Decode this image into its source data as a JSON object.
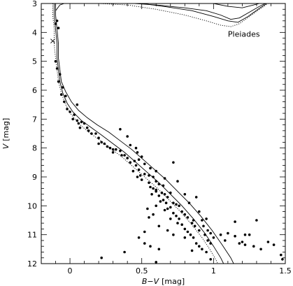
{
  "chart_data": {
    "type": "scatter",
    "title": "",
    "xlabel": "B−V",
    "xlabel_unit": "[mag]",
    "ylabel": "V",
    "ylabel_unit": "[mag]",
    "xlim": [
      -0.2,
      1.5
    ],
    "ylim": [
      12,
      3
    ],
    "y_inverted": true,
    "grid": false,
    "legend": "none",
    "x_ticks": [
      0,
      0.5,
      1,
      1.5
    ],
    "x_tick_labels": [
      "0",
      "0.5",
      "1",
      "1.5"
    ],
    "y_ticks": [
      3,
      4,
      5,
      6,
      7,
      8,
      9,
      10,
      11,
      12
    ],
    "y_tick_labels": [
      "3",
      "4",
      "5",
      "6",
      "7",
      "8",
      "9",
      "10",
      "11",
      "12"
    ],
    "annotations": [
      {
        "text": "Pleiades",
        "x": 1.1,
        "y": 4.15
      }
    ],
    "markers": [
      {
        "symbol": "cross",
        "x": -0.12,
        "y": 4.3
      }
    ],
    "series": [
      {
        "style": "dots",
        "points": [
          [
            -0.09,
            3.6
          ],
          [
            -0.08,
            3.85
          ],
          [
            -0.1,
            3.7
          ],
          [
            -0.1,
            5.0
          ],
          [
            -0.09,
            5.25
          ],
          [
            -0.07,
            5.45
          ],
          [
            -0.08,
            5.7
          ],
          [
            -0.05,
            5.9
          ],
          [
            -0.06,
            6.15
          ],
          [
            -0.03,
            6.2
          ],
          [
            -0.04,
            6.4
          ],
          [
            0.05,
            6.5
          ],
          [
            -0.02,
            6.65
          ],
          [
            0.0,
            6.75
          ],
          [
            0.03,
            6.85
          ],
          [
            0.02,
            7.0
          ],
          [
            0.05,
            7.05
          ],
          [
            0.06,
            7.15
          ],
          [
            0.08,
            7.1
          ],
          [
            0.1,
            7.15
          ],
          [
            0.07,
            7.3
          ],
          [
            0.12,
            7.3
          ],
          [
            0.13,
            7.4
          ],
          [
            0.15,
            7.5
          ],
          [
            0.18,
            7.5
          ],
          [
            0.2,
            7.65
          ],
          [
            0.22,
            7.8
          ],
          [
            0.24,
            7.85
          ],
          [
            0.2,
            7.85
          ],
          [
            0.26,
            7.95
          ],
          [
            0.28,
            8.0
          ],
          [
            0.3,
            8.05
          ],
          [
            0.32,
            8.05
          ],
          [
            0.3,
            8.15
          ],
          [
            0.35,
            8.1
          ],
          [
            0.36,
            8.25
          ],
          [
            0.38,
            8.25
          ],
          [
            0.4,
            8.35
          ],
          [
            0.42,
            8.5
          ],
          [
            0.45,
            8.45
          ],
          [
            0.46,
            8.6
          ],
          [
            0.44,
            8.8
          ],
          [
            0.48,
            8.75
          ],
          [
            0.49,
            8.95
          ],
          [
            0.52,
            8.9
          ],
          [
            0.5,
            9.1
          ],
          [
            0.55,
            9.2
          ],
          [
            0.56,
            9.35
          ],
          [
            0.58,
            9.4
          ],
          [
            0.6,
            9.45
          ],
          [
            0.57,
            9.6
          ],
          [
            0.62,
            9.65
          ],
          [
            0.64,
            9.55
          ],
          [
            0.65,
            9.8
          ],
          [
            0.67,
            9.9
          ],
          [
            0.68,
            10.1
          ],
          [
            0.7,
            10.05
          ],
          [
            0.72,
            10.25
          ],
          [
            0.74,
            10.35
          ],
          [
            0.76,
            10.45
          ],
          [
            0.75,
            10.6
          ],
          [
            0.78,
            10.65
          ],
          [
            0.8,
            10.8
          ],
          [
            0.82,
            10.9
          ],
          [
            0.84,
            11.0
          ],
          [
            0.86,
            11.1
          ],
          [
            0.88,
            11.3
          ],
          [
            0.9,
            11.4
          ],
          [
            0.92,
            11.5
          ],
          [
            0.35,
            7.35
          ],
          [
            0.4,
            7.6
          ],
          [
            0.42,
            7.9
          ],
          [
            0.46,
            8.0
          ],
          [
            0.47,
            8.15
          ],
          [
            0.5,
            8.3
          ],
          [
            0.52,
            8.55
          ],
          [
            0.47,
            9.0
          ],
          [
            0.55,
            8.95
          ],
          [
            0.58,
            9.0
          ],
          [
            0.6,
            9.15
          ],
          [
            0.62,
            9.25
          ],
          [
            0.6,
            9.5
          ],
          [
            0.65,
            9.3
          ],
          [
            0.66,
            9.6
          ],
          [
            0.68,
            9.7
          ],
          [
            0.7,
            9.55
          ],
          [
            0.72,
            9.9
          ],
          [
            0.74,
            9.95
          ],
          [
            0.76,
            10.0
          ],
          [
            0.78,
            10.2
          ],
          [
            0.8,
            10.3
          ],
          [
            0.82,
            10.4
          ],
          [
            0.85,
            10.6
          ],
          [
            0.87,
            10.7
          ],
          [
            0.9,
            10.85
          ],
          [
            0.94,
            11.0
          ],
          [
            0.96,
            11.2
          ],
          [
            0.98,
            11.3
          ],
          [
            0.72,
            8.5
          ],
          [
            0.75,
            9.15
          ],
          [
            0.8,
            9.6
          ],
          [
            0.83,
            9.9
          ],
          [
            0.88,
            9.7
          ],
          [
            0.9,
            10.2
          ],
          [
            0.92,
            10.5
          ],
          [
            0.95,
            10.45
          ],
          [
            0.93,
            10.7
          ],
          [
            0.96,
            10.85
          ],
          [
            0.98,
            10.95
          ],
          [
            1.0,
            11.1
          ],
          [
            1.05,
            11.0
          ],
          [
            1.08,
            11.2
          ],
          [
            1.1,
            10.95
          ],
          [
            1.15,
            11.05
          ],
          [
            1.18,
            11.3
          ],
          [
            1.2,
            11.25
          ],
          [
            1.22,
            11.35
          ],
          [
            1.25,
            11.0
          ],
          [
            1.28,
            11.4
          ],
          [
            1.33,
            11.5
          ],
          [
            1.38,
            11.25
          ],
          [
            1.42,
            11.35
          ],
          [
            1.47,
            11.7
          ],
          [
            1.48,
            11.85
          ],
          [
            1.3,
            10.5
          ],
          [
            1.15,
            10.55
          ],
          [
            1.22,
            11.0
          ],
          [
            0.6,
            10.0
          ],
          [
            0.55,
            10.4
          ],
          [
            0.52,
            10.9
          ],
          [
            0.48,
            11.1
          ],
          [
            0.52,
            11.3
          ],
          [
            0.56,
            11.4
          ],
          [
            0.62,
            11.5
          ],
          [
            0.38,
            11.6
          ],
          [
            0.22,
            11.8
          ],
          [
            0.6,
            11.95
          ],
          [
            0.86,
            10.5
          ],
          [
            0.63,
            9.85
          ],
          [
            0.54,
            10.1
          ],
          [
            0.58,
            10.3
          ],
          [
            0.66,
            10.15
          ],
          [
            0.7,
            10.45
          ],
          [
            0.62,
            10.7
          ],
          [
            0.68,
            10.85
          ],
          [
            0.72,
            11.0
          ],
          [
            0.8,
            11.1
          ],
          [
            0.85,
            11.55
          ],
          [
            0.95,
            11.6
          ],
          [
            0.98,
            11.85
          ],
          [
            0.48,
            8.4
          ],
          [
            0.56,
            8.7
          ],
          [
            0.6,
            8.8
          ],
          [
            0.66,
            9.05
          ]
        ]
      },
      {
        "style": "solid",
        "points": [
          [
            -0.11,
            3.0
          ],
          [
            -0.11,
            3.4
          ],
          [
            -0.1,
            3.9
          ],
          [
            -0.09,
            4.4
          ],
          [
            -0.09,
            4.9
          ],
          [
            -0.08,
            5.3
          ],
          [
            -0.07,
            5.7
          ],
          [
            -0.05,
            6.1
          ],
          [
            -0.02,
            6.45
          ],
          [
            0.02,
            6.75
          ],
          [
            0.08,
            7.05
          ],
          [
            0.15,
            7.3
          ],
          [
            0.22,
            7.55
          ],
          [
            0.3,
            7.85
          ],
          [
            0.38,
            8.15
          ],
          [
            0.46,
            8.5
          ],
          [
            0.54,
            8.85
          ],
          [
            0.62,
            9.2
          ],
          [
            0.7,
            9.6
          ],
          [
            0.78,
            10.0
          ],
          [
            0.86,
            10.45
          ],
          [
            0.94,
            10.95
          ],
          [
            1.0,
            11.4
          ],
          [
            1.05,
            11.8
          ],
          [
            1.07,
            12.0
          ]
        ]
      },
      {
        "style": "solid",
        "points": [
          [
            -0.1,
            3.0
          ],
          [
            -0.1,
            3.4
          ],
          [
            -0.09,
            3.9
          ],
          [
            -0.08,
            4.4
          ],
          [
            -0.08,
            4.9
          ],
          [
            -0.07,
            5.3
          ],
          [
            -0.06,
            5.7
          ],
          [
            -0.03,
            6.05
          ],
          [
            0.01,
            6.4
          ],
          [
            0.06,
            6.7
          ],
          [
            0.12,
            6.95
          ],
          [
            0.19,
            7.2
          ],
          [
            0.27,
            7.45
          ],
          [
            0.35,
            7.75
          ],
          [
            0.43,
            8.05
          ],
          [
            0.51,
            8.4
          ],
          [
            0.59,
            8.75
          ],
          [
            0.67,
            9.1
          ],
          [
            0.75,
            9.5
          ],
          [
            0.83,
            9.9
          ],
          [
            0.91,
            10.35
          ],
          [
            0.99,
            10.85
          ],
          [
            1.06,
            11.35
          ],
          [
            1.12,
            11.8
          ],
          [
            1.14,
            12.0
          ]
        ]
      },
      {
        "style": "dotted",
        "points": [
          [
            -0.12,
            3.0
          ],
          [
            -0.12,
            3.4
          ],
          [
            -0.11,
            3.9
          ],
          [
            -0.11,
            4.4
          ],
          [
            -0.1,
            4.9
          ],
          [
            -0.09,
            5.3
          ],
          [
            -0.08,
            5.7
          ],
          [
            -0.06,
            6.1
          ],
          [
            -0.03,
            6.5
          ],
          [
            0.01,
            6.85
          ],
          [
            0.06,
            7.15
          ],
          [
            0.13,
            7.45
          ],
          [
            0.2,
            7.7
          ],
          [
            0.28,
            8.0
          ],
          [
            0.36,
            8.3
          ],
          [
            0.44,
            8.65
          ],
          [
            0.52,
            9.0
          ],
          [
            0.6,
            9.35
          ],
          [
            0.68,
            9.75
          ],
          [
            0.76,
            10.15
          ],
          [
            0.84,
            10.6
          ],
          [
            0.92,
            11.1
          ],
          [
            0.98,
            11.55
          ],
          [
            1.02,
            11.9
          ],
          [
            1.03,
            12.0
          ]
        ]
      },
      {
        "style": "solid",
        "points": [
          [
            -0.1,
            3.25
          ],
          [
            -0.07,
            3.05
          ],
          [
            -0.04,
            3.0
          ]
        ]
      },
      {
        "style": "solid",
        "points": [
          [
            0.45,
            3.0
          ],
          [
            0.6,
            3.05
          ],
          [
            0.8,
            3.15
          ],
          [
            0.95,
            3.25
          ],
          [
            1.05,
            3.4
          ],
          [
            1.12,
            3.55
          ],
          [
            1.18,
            3.5
          ],
          [
            1.25,
            3.3
          ],
          [
            1.32,
            3.1
          ],
          [
            1.36,
            3.0
          ]
        ]
      },
      {
        "style": "solid",
        "points": [
          [
            0.5,
            3.0
          ],
          [
            0.65,
            3.1
          ],
          [
            0.85,
            3.25
          ],
          [
            1.0,
            3.45
          ],
          [
            1.1,
            3.6
          ],
          [
            1.17,
            3.65
          ],
          [
            1.24,
            3.45
          ],
          [
            1.31,
            3.2
          ],
          [
            1.37,
            3.0
          ]
        ]
      },
      {
        "style": "dotted",
        "points": [
          [
            0.2,
            3.0
          ],
          [
            0.4,
            3.05
          ],
          [
            0.6,
            3.2
          ],
          [
            0.8,
            3.4
          ],
          [
            0.95,
            3.6
          ],
          [
            1.05,
            3.75
          ],
          [
            1.12,
            3.8
          ],
          [
            1.18,
            3.7
          ],
          [
            1.25,
            3.45
          ],
          [
            1.32,
            3.2
          ],
          [
            1.38,
            3.0
          ]
        ]
      },
      {
        "style": "solid",
        "points": [
          [
            1.0,
            3.0
          ],
          [
            1.1,
            3.1
          ],
          [
            1.2,
            3.15
          ],
          [
            1.28,
            3.05
          ],
          [
            1.32,
            3.0
          ]
        ]
      }
    ]
  }
}
